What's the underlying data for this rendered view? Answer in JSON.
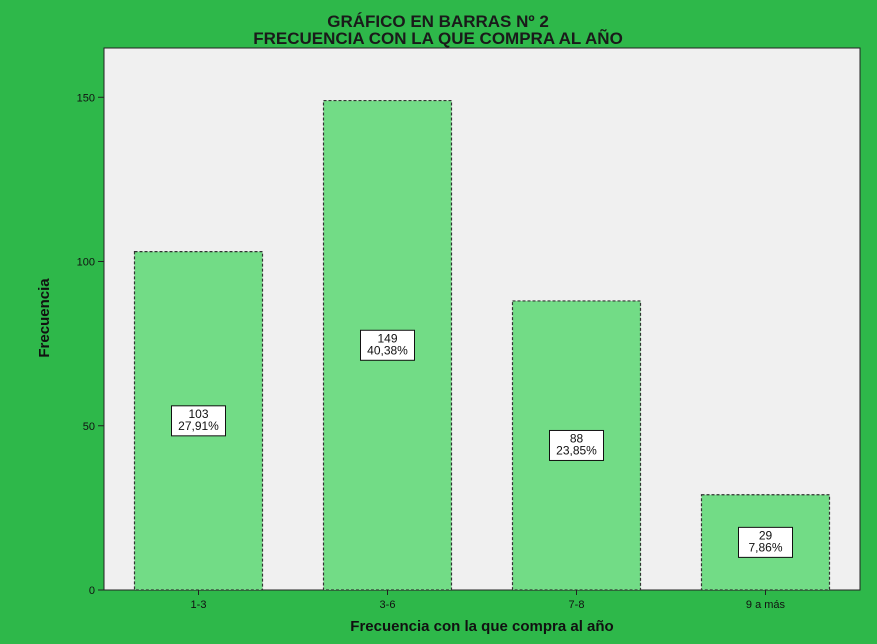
{
  "colors": {
    "outer_background": "#2eb84a",
    "plot_background": "#f0f0f0",
    "bar_fill": "#72dc86",
    "bar_stroke": "#333333",
    "label_box": "#ffffff"
  },
  "chart_data": {
    "type": "bar",
    "title_line1": "GRÁFICO EN BARRAS Nº 2",
    "title_line2": "FRECUENCIA CON LA QUE COMPRA AL AÑO",
    "xlabel": "Frecuencia con la que compra al año",
    "ylabel": "Frecuencia",
    "categories": [
      "1-3",
      "3-6",
      "7-8",
      "9 a más"
    ],
    "values": [
      103,
      149,
      88,
      29
    ],
    "data_labels": [
      [
        "103",
        "27,91%"
      ],
      [
        "149",
        "40,38%"
      ],
      [
        "88",
        "23,85%"
      ],
      [
        "29",
        "7,86%"
      ]
    ],
    "ylim": [
      0,
      165
    ],
    "yticks": [
      0,
      50,
      100,
      150
    ],
    "grid": false,
    "legend": "none"
  }
}
